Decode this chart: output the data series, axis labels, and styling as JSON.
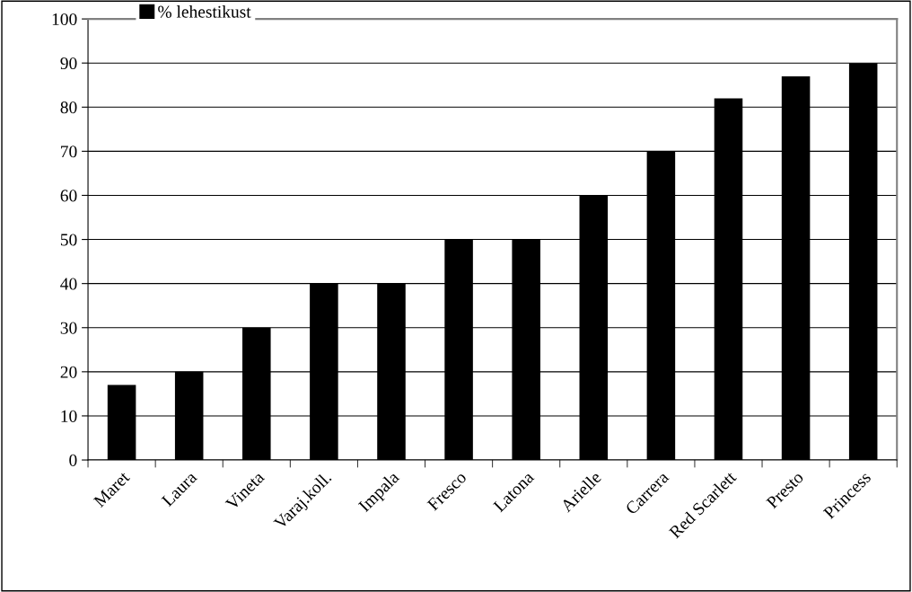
{
  "chart_data": {
    "type": "bar",
    "categories": [
      "Maret",
      "Laura",
      "Vineta",
      "Varaj.koll.",
      "Impala",
      "Fresco",
      "Latona",
      "Arielle",
      "Carrera",
      "Red Scarlett",
      "Presto",
      "Princess"
    ],
    "series": [
      {
        "name": "% lehestikust",
        "color": "#000000",
        "values": [
          17,
          20,
          30,
          40,
          40,
          50,
          50,
          60,
          70,
          82,
          87,
          90
        ]
      }
    ],
    "ylim": [
      0,
      100
    ],
    "yticks": [
      0,
      10,
      20,
      30,
      40,
      50,
      60,
      70,
      80,
      90,
      100
    ],
    "grid": "y",
    "legend": "top left"
  }
}
